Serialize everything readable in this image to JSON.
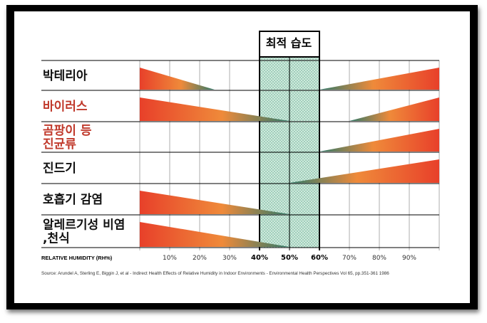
{
  "chart_data": {
    "type": "area",
    "optimal_zone": {
      "label": "최적 습도",
      "range": [
        40,
        60
      ]
    },
    "xlabel": "RELATIVE HUMIDITY (RH%)",
    "xlim": [
      0,
      100
    ],
    "ticks": [
      {
        "value": 10,
        "label": "10%",
        "bold": false
      },
      {
        "value": 20,
        "label": "20%",
        "bold": false
      },
      {
        "value": 30,
        "label": "30%",
        "bold": false
      },
      {
        "value": 40,
        "label": "40%",
        "bold": true
      },
      {
        "value": 50,
        "label": "50%",
        "bold": true
      },
      {
        "value": 60,
        "label": "60%",
        "bold": true
      },
      {
        "value": 70,
        "label": "70%",
        "bold": false
      },
      {
        "value": 80,
        "label": "80%",
        "bold": false
      },
      {
        "value": 90,
        "label": "90%",
        "bold": false
      }
    ],
    "rows": [
      {
        "label_lines": [
          "박테리아"
        ],
        "color": "#111111",
        "left_wedge": {
          "from": 0,
          "to": 25
        },
        "right_wedge": {
          "from": 60,
          "to": 100
        }
      },
      {
        "label_lines": [
          "바이러스"
        ],
        "color": "#c0392b",
        "left_wedge": {
          "from": 0,
          "to": 50
        },
        "right_wedge": {
          "from": 70,
          "to": 100
        }
      },
      {
        "label_lines": [
          "곰팡이 등",
          "진균류"
        ],
        "color": "#c0392b",
        "left_wedge": null,
        "right_wedge": {
          "from": 60,
          "to": 100
        }
      },
      {
        "label_lines": [
          "진드기"
        ],
        "color": "#111111",
        "left_wedge": null,
        "right_wedge": {
          "from": 50,
          "to": 100
        }
      },
      {
        "label_lines": [
          "호흡기 감염"
        ],
        "color": "#111111",
        "left_wedge": {
          "from": 0,
          "to": 50
        },
        "right_wedge": null
      },
      {
        "label_lines": [
          "알레르기성 비염",
          ",천식"
        ],
        "color": "#111111",
        "left_wedge": {
          "from": 0,
          "to": 50
        },
        "right_wedge": null
      }
    ],
    "source": "Source: Arundel A, Sterling E, Biggin J, et al - Indirect Health Effects of Relative Humidity in Indoor Environments - Environmental Health Perspectives Vol 65, pp.351-361 1986"
  },
  "colors": {
    "wedge_red": "#e8402a",
    "wedge_orange": "#ef8a3a",
    "wedge_teal": "#2e7a6a",
    "optimal_fill": "#cfe9dc"
  }
}
